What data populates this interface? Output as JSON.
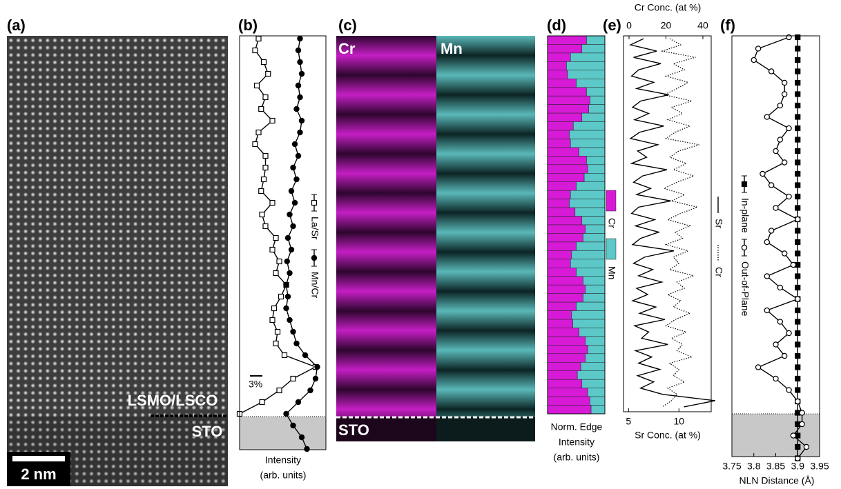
{
  "panel_labels": [
    "(a)",
    "(b)",
    "(c)",
    "(d)",
    "(e)",
    "(f)"
  ],
  "chart_data": [
    {
      "type": "image",
      "annotations": [
        "LSMO/LSCO",
        "STO"
      ],
      "scale_bar": "2 nm"
    },
    {
      "type": "line",
      "xlabel": [
        "Intensity",
        "(arb. units)"
      ],
      "scale_label": "3%",
      "xlim": [
        0,
        100
      ],
      "series": [
        {
          "name": "La/Sr",
          "color": "#000000",
          "marker": "open-square",
          "values": [
            22,
            18,
            28,
            33,
            20,
            30,
            25,
            38,
            22,
            18,
            30,
            30,
            28,
            25,
            38,
            26,
            30,
            42,
            38,
            46,
            42,
            54,
            48,
            40,
            38,
            44,
            42,
            52,
            88,
            62,
            46,
            26,
            0
          ]
        },
        {
          "name": "Mn/Cr",
          "color": "#000000",
          "marker": "filled-circle",
          "values": [
            70,
            68,
            70,
            72,
            68,
            70,
            66,
            72,
            70,
            64,
            68,
            62,
            66,
            60,
            64,
            58,
            62,
            56,
            60,
            55,
            58,
            54,
            56,
            54,
            58,
            62,
            66,
            76,
            90,
            88,
            82,
            68,
            54,
            62,
            72,
            78
          ]
        }
      ]
    },
    {
      "type": "image",
      "labels": [
        "Cr",
        "Mn",
        "STO"
      ]
    },
    {
      "type": "stacked-bar",
      "xlabel": [
        "Norm. Edge",
        "Intensity",
        "(arb. units)"
      ],
      "xlim": [
        0,
        100
      ],
      "series": [
        {
          "name": "Cr",
          "color": "#d61ad6",
          "values": [
            68,
            60,
            40,
            33,
            35,
            50,
            68,
            74,
            72,
            60,
            45,
            38,
            40,
            55,
            68,
            70,
            64,
            50,
            40,
            38,
            48,
            60,
            66,
            62,
            50,
            42,
            40,
            50,
            62,
            66,
            62,
            50,
            42,
            44,
            55,
            66,
            70,
            66,
            58,
            52,
            60,
            70,
            74,
            76
          ]
        },
        {
          "name": "Mn",
          "color": "#5cc8c8",
          "values": [
            32,
            40,
            60,
            67,
            65,
            50,
            32,
            26,
            28,
            40,
            55,
            62,
            60,
            45,
            32,
            30,
            36,
            50,
            60,
            62,
            52,
            40,
            34,
            38,
            50,
            58,
            60,
            50,
            38,
            34,
            38,
            50,
            58,
            56,
            45,
            34,
            30,
            34,
            42,
            48,
            40,
            30,
            26,
            24
          ]
        }
      ]
    },
    {
      "type": "line",
      "xlabel": [
        "Sr Conc. (at %)"
      ],
      "x2label": [
        "Cr Conc. (at %)"
      ],
      "xlim": [
        4.5,
        13.2
      ],
      "xticks": [
        5,
        10
      ],
      "x2lim": [
        -3,
        44.5
      ],
      "x2ticks": [
        0,
        20,
        40
      ],
      "series": [
        {
          "name": "Sr",
          "color": "#000000",
          "style": "solid",
          "values": [
            6.5,
            5.2,
            7.8,
            5.5,
            8.2,
            6.0,
            5.3,
            7.5,
            5.8,
            9.0,
            6.2,
            5.4,
            7.0,
            5.6,
            8.5,
            6.1,
            5.2,
            7.9,
            5.9,
            6.8,
            5.3,
            8.8,
            6.4,
            5.5,
            7.2,
            5.8,
            9.2,
            6.0,
            5.3,
            7.6,
            5.7,
            8.0,
            6.2,
            5.4,
            9.5,
            6.6,
            5.5,
            7.4,
            6.0,
            8.3,
            5.8,
            6.9,
            5.4,
            7.7,
            6.1,
            8.6,
            5.6,
            7.0,
            6.3,
            8.9,
            5.7,
            7.3,
            6.0,
            8.1,
            5.9,
            7.5,
            6.2,
            8.4,
            13.6,
            10.5
          ]
        },
        {
          "name": "Cr",
          "color": "#000000",
          "style": "dotted",
          "axis": "x2",
          "values": [
            22,
            28,
            18,
            36,
            24,
            30,
            20,
            32,
            26,
            19,
            34,
            23,
            29,
            21,
            33,
            25,
            20,
            38,
            27,
            22,
            31,
            24,
            35,
            26,
            19,
            30,
            23,
            37,
            28,
            21,
            33,
            25,
            29,
            20,
            32,
            24,
            27,
            22,
            35,
            26,
            30,
            21,
            28,
            24,
            33,
            25,
            20,
            31,
            23,
            29,
            26,
            34,
            22,
            27,
            24,
            30,
            21,
            26,
            23,
            18
          ]
        }
      ]
    },
    {
      "type": "line",
      "xlabel": [
        "NLN Distance (Å)"
      ],
      "xlim": [
        3.75,
        3.95
      ],
      "xticks": [
        3.75,
        3.8,
        3.85,
        3.9,
        3.95
      ],
      "series": [
        {
          "name": "In-plane",
          "color": "#000000",
          "marker": "filled-square",
          "values": [
            3.9,
            3.9,
            3.9,
            3.9,
            3.9,
            3.9,
            3.9,
            3.9,
            3.9,
            3.9,
            3.9,
            3.9,
            3.9,
            3.9,
            3.9,
            3.9,
            3.9,
            3.9,
            3.9,
            3.9,
            3.9,
            3.9,
            3.9,
            3.9,
            3.9,
            3.9,
            3.9,
            3.9,
            3.9,
            3.9,
            3.9,
            3.9,
            3.9,
            3.9,
            3.9,
            3.9,
            3.9,
            3.9
          ]
        },
        {
          "name": "Out-of-Plane",
          "color": "#000000",
          "marker": "open-circle",
          "values": [
            3.88,
            3.81,
            3.8,
            3.84,
            3.87,
            3.87,
            3.86,
            3.83,
            3.88,
            3.86,
            3.85,
            3.87,
            3.82,
            3.84,
            3.88,
            3.85,
            3.9,
            3.84,
            3.83,
            3.87,
            3.89,
            3.83,
            3.86,
            3.9,
            3.83,
            3.86,
            3.88,
            3.85,
            3.87,
            3.81,
            3.85,
            3.88,
            3.9,
            3.91,
            3.91,
            3.89,
            3.92,
            3.9
          ]
        }
      ]
    }
  ]
}
